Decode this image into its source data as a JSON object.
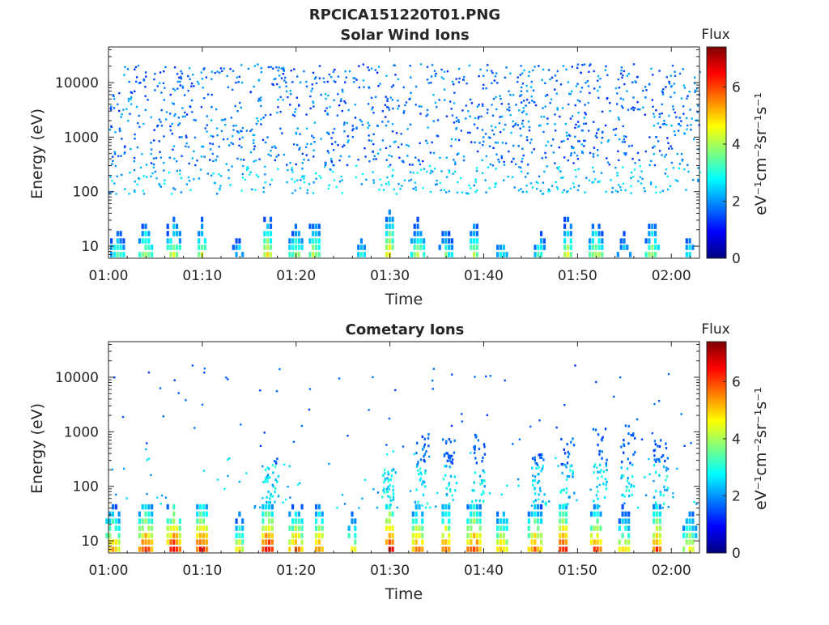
{
  "figure_title": "RPCICA151220T01.PNG",
  "colorbar_unit": "eV⁻¹cm⁻²sr⁻¹s⁻¹",
  "colormap": "jet",
  "chart_data": [
    {
      "type": "heatmap",
      "title": "Solar Wind Ions",
      "xlabel": "Time",
      "ylabel": "Energy (eV)",
      "yscale": "log",
      "ylim": [
        6,
        45000
      ],
      "xlim": [
        "01:00",
        "02:03"
      ],
      "x_ticks": [
        "01:00",
        "01:10",
        "01:20",
        "01:30",
        "01:40",
        "01:50",
        "02:00"
      ],
      "y_ticks": [
        {
          "value": 10,
          "label": "10"
        },
        {
          "value": 100,
          "label": "100"
        },
        {
          "value": 1000,
          "label": "1000"
        },
        {
          "value": 10000,
          "label": "10000"
        }
      ],
      "colorbar": {
        "label": "Flux",
        "range": [
          0,
          7.4
        ],
        "ticks": [
          "0",
          "2",
          "4",
          "6"
        ]
      },
      "grid": false,
      "description": "Sparse background counts (flux ~1-3) scattered from ~100 eV to ~20000 eV; intermittent bursts of flux 3-5.5 below ~30 eV",
      "bursts": [
        {
          "time": "01:01",
          "flux": 3.8
        },
        {
          "time": "01:04",
          "flux": 4.5
        },
        {
          "time": "01:07",
          "flux": 4.7
        },
        {
          "time": "01:10",
          "flux": 4.6
        },
        {
          "time": "01:14",
          "flux": 3.2
        },
        {
          "time": "01:17",
          "flux": 5.0
        },
        {
          "time": "01:20",
          "flux": 4.3
        },
        {
          "time": "01:22",
          "flux": 4.6
        },
        {
          "time": "01:27",
          "flux": 3.3
        },
        {
          "time": "01:30",
          "flux": 5.3
        },
        {
          "time": "01:33",
          "flux": 4.4
        },
        {
          "time": "01:36",
          "flux": 3.8
        },
        {
          "time": "01:39",
          "flux": 4.5
        },
        {
          "time": "01:42",
          "flux": 3.2
        },
        {
          "time": "01:46",
          "flux": 3.6
        },
        {
          "time": "01:49",
          "flux": 4.7
        },
        {
          "time": "01:52",
          "flux": 4.6
        },
        {
          "time": "01:55",
          "flux": 3.3
        },
        {
          "time": "01:58",
          "flux": 4.4
        },
        {
          "time": "02:02",
          "flux": 3.2
        }
      ]
    },
    {
      "type": "heatmap",
      "title": "Cometary Ions",
      "xlabel": "Time",
      "ylabel": "Energy (eV)",
      "yscale": "log",
      "ylim": [
        6,
        45000
      ],
      "xlim": [
        "01:00",
        "02:03"
      ],
      "x_ticks": [
        "01:00",
        "01:10",
        "01:20",
        "01:30",
        "01:40",
        "01:50",
        "02:00"
      ],
      "y_ticks": [
        {
          "value": 10,
          "label": "10"
        },
        {
          "value": 100,
          "label": "100"
        },
        {
          "value": 1000,
          "label": "1000"
        },
        {
          "value": 10000,
          "label": "10000"
        }
      ],
      "colorbar": {
        "label": "Flux",
        "range": [
          0,
          7.4
        ],
        "ticks": [
          "0",
          "2",
          "4",
          "6"
        ]
      },
      "grid": false,
      "description": "Periodic intense bursts (flux up to ~7) below ~40 eV, with plumes up to ~300-1000 eV after 01:30; isolated counts up to ~17000 eV",
      "bursts": [
        {
          "time": "01:00.5",
          "flux": 6.0
        },
        {
          "time": "01:04",
          "flux": 6.6
        },
        {
          "time": "01:07",
          "flux": 6.9
        },
        {
          "time": "01:10",
          "flux": 6.9
        },
        {
          "time": "01:14",
          "flux": 5.0
        },
        {
          "time": "01:17",
          "flux": 7.0
        },
        {
          "time": "01:20",
          "flux": 6.2
        },
        {
          "time": "01:22.5",
          "flux": 6.0
        },
        {
          "time": "01:26",
          "flux": 5.0
        },
        {
          "time": "01:30",
          "flux": 7.0
        },
        {
          "time": "01:33",
          "flux": 6.3
        },
        {
          "time": "01:36",
          "flux": 6.3
        },
        {
          "time": "01:39",
          "flux": 6.6
        },
        {
          "time": "01:42",
          "flux": 5.6
        },
        {
          "time": "01:45.5",
          "flux": 6.2
        },
        {
          "time": "01:48.5",
          "flux": 6.8
        },
        {
          "time": "01:52",
          "flux": 6.4
        },
        {
          "time": "01:55",
          "flux": 5.4
        },
        {
          "time": "01:58.5",
          "flux": 6.4
        },
        {
          "time": "02:02",
          "flux": 5.2
        }
      ],
      "plumes": [
        {
          "time": "01:17",
          "max_energy": 320
        },
        {
          "time": "01:29.5",
          "max_energy": 230
        },
        {
          "time": "01:33",
          "max_energy": 900
        },
        {
          "time": "01:36",
          "max_energy": 750
        },
        {
          "time": "01:39",
          "max_energy": 900
        },
        {
          "time": "01:45.5",
          "max_energy": 400
        },
        {
          "time": "01:48.5",
          "max_energy": 800
        },
        {
          "time": "01:52",
          "max_energy": 1200
        },
        {
          "time": "01:55",
          "max_energy": 1300
        },
        {
          "time": "01:58.5",
          "max_energy": 700
        }
      ]
    }
  ]
}
